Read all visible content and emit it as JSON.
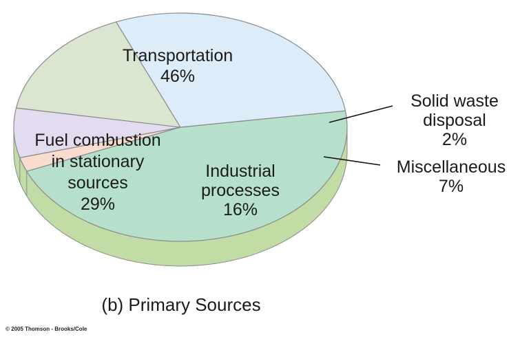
{
  "chart_data": {
    "type": "pie",
    "style": "3d",
    "caption": "(b) Primary Sources",
    "slices": [
      {
        "label_lines": [
          "Transportation"
        ],
        "pct_text": "46%",
        "value": 46,
        "color": "#b6e0cc"
      },
      {
        "label_lines": [
          "Solid waste",
          "disposal"
        ],
        "pct_text": "2%",
        "value": 2,
        "color": "#f9dccd"
      },
      {
        "label_lines": [
          "Miscellaneous"
        ],
        "pct_text": "7%",
        "value": 7,
        "color": "#e3dcf0"
      },
      {
        "label_lines": [
          "Industrial",
          "processes"
        ],
        "pct_text": "16%",
        "value": 16,
        "color": "#dbe6d0"
      },
      {
        "label_lines": [
          "Fuel combustion",
          "in stationary",
          "sources"
        ],
        "pct_text": "29%",
        "value": 29,
        "color": "#dcedf9"
      }
    ],
    "side_color": "#c2dca6"
  },
  "copyright": "© 2005 Thomson - Brooks/Cole"
}
